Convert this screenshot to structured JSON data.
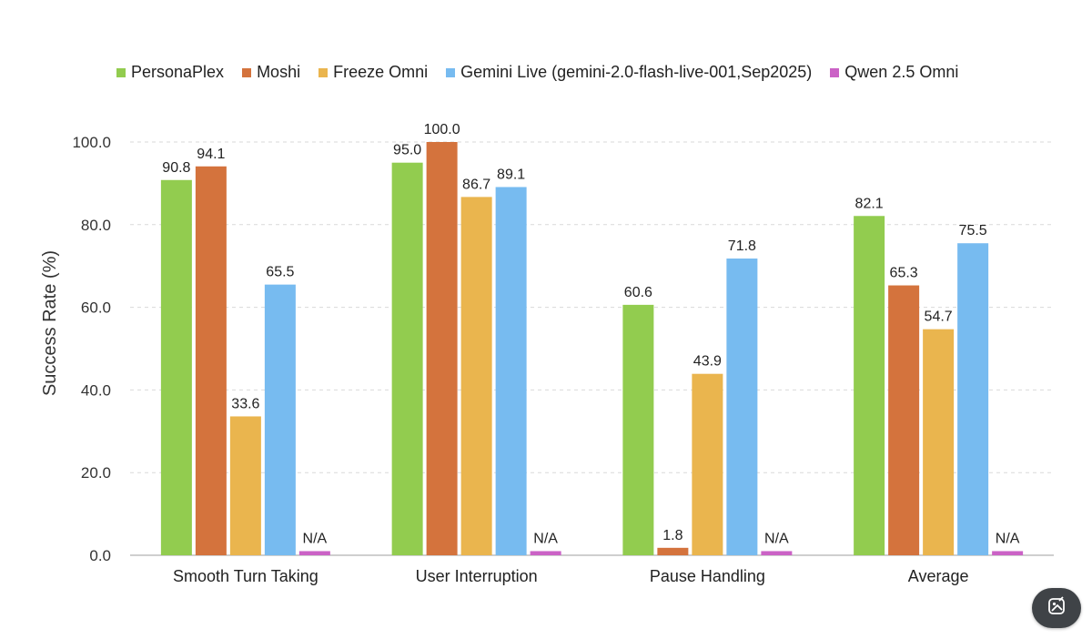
{
  "chart_data": {
    "type": "bar",
    "ylabel": "Success Rate (%)",
    "ylim": [
      0,
      100
    ],
    "yticks": [
      "0.0",
      "20.0",
      "40.0",
      "60.0",
      "80.0",
      "100.0"
    ],
    "grid": "horizontal dashed",
    "legend_position": "top",
    "categories": [
      "Smooth Turn Taking",
      "User Interruption",
      "Pause Handling",
      "Average"
    ],
    "series": [
      {
        "name": "PersonaPlex",
        "color": "#92cc4f",
        "values": [
          90.8,
          95.0,
          60.6,
          82.1
        ],
        "labels": [
          "90.8",
          "95.0",
          "60.6",
          "82.1"
        ]
      },
      {
        "name": "Moshi",
        "color": "#d4733d",
        "values": [
          94.1,
          100.0,
          1.8,
          65.3
        ],
        "labels": [
          "94.1",
          "100.0",
          "1.8",
          "65.3"
        ]
      },
      {
        "name": "Freeze Omni",
        "color": "#eab54e",
        "values": [
          33.6,
          86.7,
          43.9,
          54.7
        ],
        "labels": [
          "33.6",
          "86.7",
          "43.9",
          "54.7"
        ]
      },
      {
        "name": "Gemini Live (gemini-2.0-flash-live-001,Sep2025)",
        "color": "#77bbf0",
        "values": [
          65.5,
          89.1,
          71.8,
          75.5
        ],
        "labels": [
          "65.5",
          "89.1",
          "71.8",
          "75.5"
        ]
      },
      {
        "name": "Qwen 2.5 Omni",
        "color": "#cb62c6",
        "values": [
          1,
          1,
          1,
          1
        ],
        "labels": [
          "N/A",
          "N/A",
          "N/A",
          "N/A"
        ]
      }
    ]
  },
  "fab": {
    "icon": "edit-image-icon"
  }
}
